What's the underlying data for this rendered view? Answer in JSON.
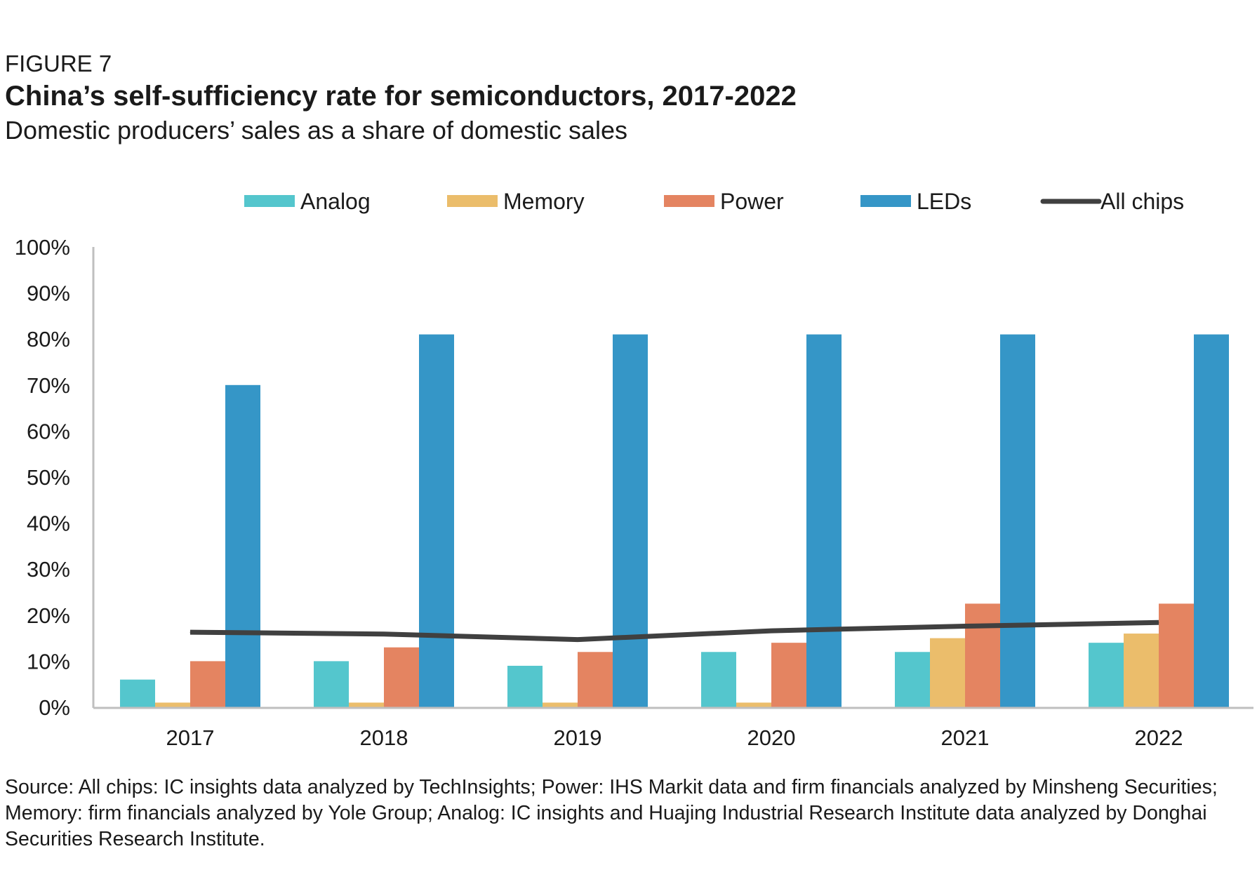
{
  "figure_label": "FIGURE 7",
  "title": "China’s self-sufficiency rate for semiconductors, 2017-2022",
  "subtitle": "Domestic producers’ sales as a share of domestic sales",
  "source": "Source: All chips: IC insights data analyzed by TechInsights; Power: IHS Markit data and firm financials analyzed by Minsheng Securities; Memory: firm financials analyzed by Yole Group; Analog: IC insights and Huajing Industrial Research Institute data analyzed by Donghai Securities Research Institute.",
  "colors": {
    "analog": "#54c6cd",
    "memory": "#ebbd6b",
    "power": "#e48461",
    "leds": "#3596c7",
    "all_chips": "#404040",
    "axis": "#bfbfbf"
  },
  "chart_data": {
    "type": "bar",
    "categories": [
      "2017",
      "2018",
      "2019",
      "2020",
      "2021",
      "2022"
    ],
    "series": [
      {
        "name": "Analog",
        "type": "bar",
        "color": "#54c6cd",
        "values": [
          6,
          10,
          9,
          12,
          12,
          14
        ]
      },
      {
        "name": "Memory",
        "type": "bar",
        "color": "#ebbd6b",
        "values": [
          1,
          1,
          1,
          1,
          15,
          16
        ]
      },
      {
        "name": "Power",
        "type": "bar",
        "color": "#e48461",
        "values": [
          10,
          13,
          12,
          14,
          22.5,
          22.5
        ]
      },
      {
        "name": "LEDs",
        "type": "bar",
        "color": "#3596c7",
        "values": [
          70,
          81,
          81,
          81,
          81,
          81
        ]
      },
      {
        "name": "All chips",
        "type": "line",
        "color": "#404040",
        "values": [
          16.3,
          15.9,
          14.7,
          16.6,
          17.6,
          18.4
        ]
      }
    ],
    "y_ticks": [
      "0%",
      "10%",
      "20%",
      "30%",
      "40%",
      "50%",
      "60%",
      "70%",
      "80%",
      "90%",
      "100%"
    ],
    "ylim": [
      0,
      100
    ],
    "grid": false,
    "legend": "top"
  }
}
